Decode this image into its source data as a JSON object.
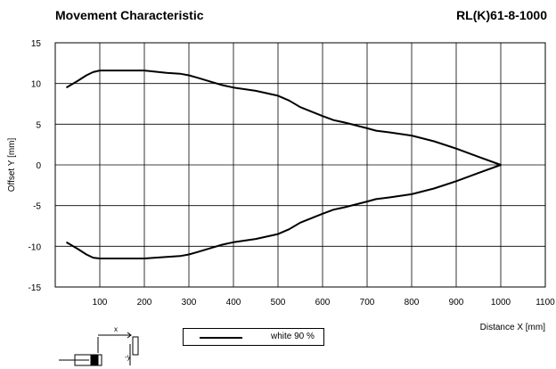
{
  "header": {
    "title": "Movement Characteristic",
    "model": "RL(K)61-8-1000"
  },
  "legend": {
    "label": "white 90 %"
  },
  "chart_data": {
    "type": "line",
    "title": "Movement Characteristic",
    "xlabel": "Distance X [mm]",
    "ylabel": "Offset Y [mm]",
    "xlim": [
      0,
      1100
    ],
    "ylim": [
      -15,
      15
    ],
    "x_ticks": [
      100,
      200,
      300,
      400,
      500,
      600,
      700,
      800,
      900,
      1000,
      1100
    ],
    "y_ticks": [
      15,
      10,
      5,
      0,
      -5,
      -10,
      -15
    ],
    "grid": true,
    "legend_position": "bottom",
    "series": [
      {
        "name": "white 90 %",
        "x": [
          25,
          50,
          70,
          85,
          100,
          150,
          200,
          250,
          280,
          300,
          320,
          350,
          375,
          400,
          450,
          500,
          525,
          550,
          600,
          625,
          650,
          700,
          720,
          750,
          800,
          850,
          900,
          950,
          1000,
          950,
          900,
          850,
          800,
          750,
          720,
          700,
          650,
          625,
          600,
          550,
          525,
          500,
          450,
          400,
          375,
          350,
          320,
          300,
          280,
          250,
          200,
          150,
          100,
          85,
          70,
          50,
          25
        ],
        "y": [
          9.5,
          10.3,
          11.0,
          11.4,
          11.6,
          11.6,
          11.6,
          11.3,
          11.2,
          11.0,
          10.7,
          10.2,
          9.8,
          9.5,
          9.1,
          8.5,
          7.9,
          7.1,
          6.0,
          5.5,
          5.2,
          4.5,
          4.2,
          4.0,
          3.6,
          2.9,
          2.0,
          1.0,
          0.0,
          -1.0,
          -2.0,
          -2.9,
          -3.6,
          -4.0,
          -4.2,
          -4.5,
          -5.2,
          -5.5,
          -6.0,
          -7.1,
          -7.9,
          -8.5,
          -9.1,
          -9.5,
          -9.8,
          -10.2,
          -10.7,
          -11.0,
          -11.2,
          -11.3,
          -11.5,
          -11.5,
          -11.5,
          -11.4,
          -11.0,
          -10.3,
          -9.5
        ]
      }
    ]
  }
}
